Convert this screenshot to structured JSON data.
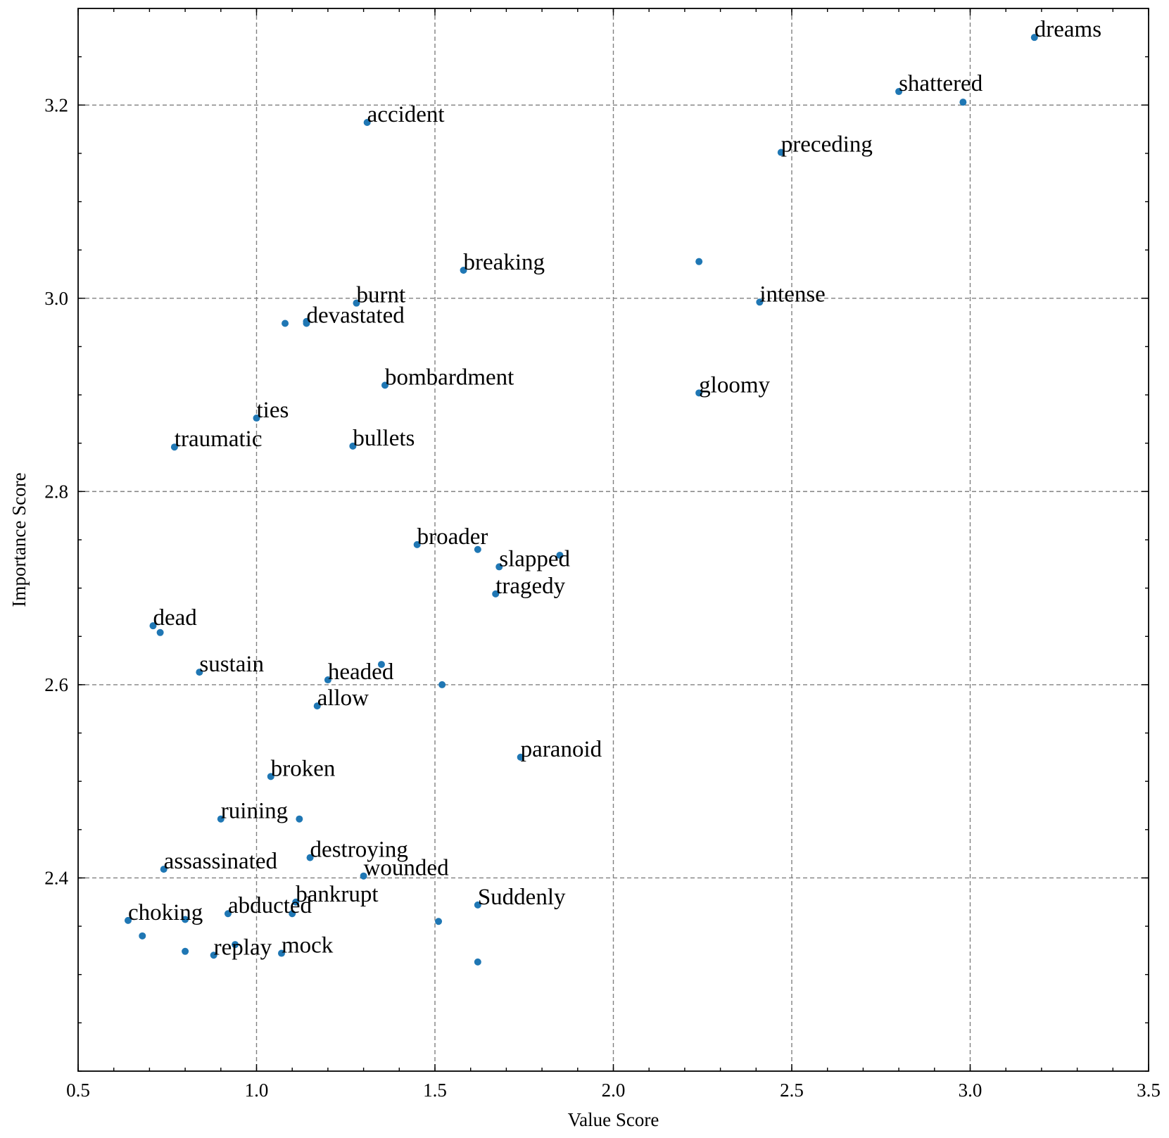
{
  "chart_data": {
    "type": "scatter",
    "xlabel": "Value Score",
    "ylabel": "Importance Score",
    "xlim": [
      0.5,
      3.5
    ],
    "ylim": [
      2.2,
      3.2
    ],
    "ylim_extended": [
      2.2,
      3.3
    ],
    "xticks": [
      "0.5",
      "1.0",
      "1.5",
      "2.0",
      "2.5",
      "3.0",
      "3.5"
    ],
    "yticks": [
      "2.4",
      "2.6",
      "2.8",
      "3.0",
      "3.2"
    ],
    "grid": true,
    "marker_color": "#1f77b4",
    "points": [
      {
        "x": 3.18,
        "y": 3.27,
        "label": "dreams"
      },
      {
        "x": 2.8,
        "y": 3.214,
        "label": "shattered"
      },
      {
        "x": 2.98,
        "y": 3.203,
        "label": ""
      },
      {
        "x": 1.31,
        "y": 3.182,
        "label": "accident"
      },
      {
        "x": 2.47,
        "y": 3.151,
        "label": "preceding"
      },
      {
        "x": 1.58,
        "y": 3.029,
        "label": "breaking"
      },
      {
        "x": 2.24,
        "y": 3.038,
        "label": ""
      },
      {
        "x": 1.28,
        "y": 2.995,
        "label": "burnt"
      },
      {
        "x": 2.41,
        "y": 2.996,
        "label": "intense"
      },
      {
        "x": 1.14,
        "y": 2.976,
        "label": ""
      },
      {
        "x": 1.14,
        "y": 2.974,
        "label": "devastated"
      },
      {
        "x": 1.08,
        "y": 2.974,
        "label": ""
      },
      {
        "x": 1.36,
        "y": 2.91,
        "label": "bombardment"
      },
      {
        "x": 2.24,
        "y": 2.902,
        "label": "gloomy"
      },
      {
        "x": 1.0,
        "y": 2.876,
        "label": "ties"
      },
      {
        "x": 0.77,
        "y": 2.846,
        "label": "traumatic"
      },
      {
        "x": 1.27,
        "y": 2.847,
        "label": "bullets"
      },
      {
        "x": 1.45,
        "y": 2.745,
        "label": "broader"
      },
      {
        "x": 1.62,
        "y": 2.74,
        "label": ""
      },
      {
        "x": 1.85,
        "y": 2.734,
        "label": ""
      },
      {
        "x": 1.68,
        "y": 2.722,
        "label": "slapped"
      },
      {
        "x": 1.67,
        "y": 2.694,
        "label": "tragedy"
      },
      {
        "x": 0.71,
        "y": 2.661,
        "label": "dead"
      },
      {
        "x": 0.73,
        "y": 2.654,
        "label": ""
      },
      {
        "x": 0.84,
        "y": 2.613,
        "label": "sustain"
      },
      {
        "x": 1.35,
        "y": 2.621,
        "label": ""
      },
      {
        "x": 1.2,
        "y": 2.605,
        "label": "headed"
      },
      {
        "x": 1.52,
        "y": 2.6,
        "label": ""
      },
      {
        "x": 1.17,
        "y": 2.578,
        "label": "allow"
      },
      {
        "x": 1.74,
        "y": 2.525,
        "label": "paranoid"
      },
      {
        "x": 1.04,
        "y": 2.505,
        "label": "broken"
      },
      {
        "x": 0.9,
        "y": 2.461,
        "label": "ruining"
      },
      {
        "x": 1.12,
        "y": 2.461,
        "label": ""
      },
      {
        "x": 1.15,
        "y": 2.421,
        "label": "destroying"
      },
      {
        "x": 0.74,
        "y": 2.409,
        "label": "assassinated"
      },
      {
        "x": 1.3,
        "y": 2.402,
        "label": "wounded"
      },
      {
        "x": 1.11,
        "y": 2.375,
        "label": "bankrupt"
      },
      {
        "x": 1.62,
        "y": 2.372,
        "label": "Suddenly"
      },
      {
        "x": 0.92,
        "y": 2.363,
        "label": "abducted"
      },
      {
        "x": 1.1,
        "y": 2.363,
        "label": ""
      },
      {
        "x": 0.64,
        "y": 2.356,
        "label": "choking"
      },
      {
        "x": 0.8,
        "y": 2.357,
        "label": ""
      },
      {
        "x": 1.51,
        "y": 2.355,
        "label": ""
      },
      {
        "x": 0.68,
        "y": 2.34,
        "label": ""
      },
      {
        "x": 0.94,
        "y": 2.331,
        "label": ""
      },
      {
        "x": 0.8,
        "y": 2.324,
        "label": ""
      },
      {
        "x": 0.88,
        "y": 2.32,
        "label": "replay"
      },
      {
        "x": 1.07,
        "y": 2.322,
        "label": "mock"
      },
      {
        "x": 1.62,
        "y": 2.313,
        "label": ""
      }
    ]
  }
}
